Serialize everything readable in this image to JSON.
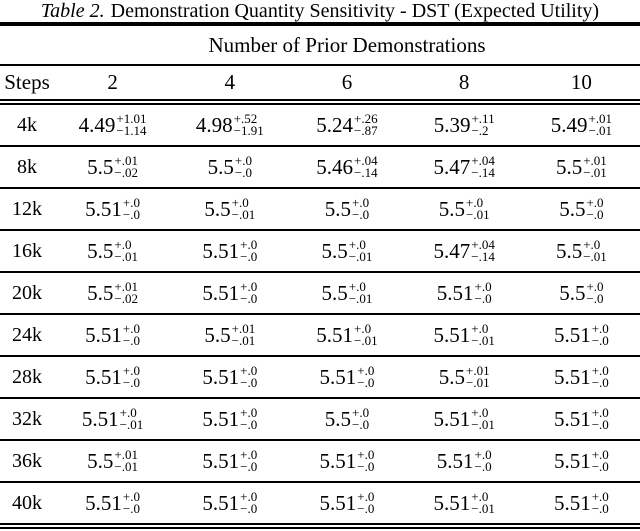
{
  "caption": {
    "label": "Table 2.",
    "text": "Demonstration Quantity Sensitivity - DST (Expected Utility)"
  },
  "table": {
    "span_header": "Number of Prior Demonstrations",
    "columns": [
      "Steps",
      "2",
      "4",
      "6",
      "8",
      "10"
    ],
    "rows": [
      {
        "label": "4k",
        "cells": [
          {
            "value": "4.49",
            "plus": "+1.01",
            "minus": "−1.14"
          },
          {
            "value": "4.98",
            "plus": "+.52",
            "minus": "−1.91"
          },
          {
            "value": "5.24",
            "plus": "+.26",
            "minus": "−.87"
          },
          {
            "value": "5.39",
            "plus": "+.11",
            "minus": "−.2"
          },
          {
            "value": "5.49",
            "plus": "+.01",
            "minus": "−.01"
          }
        ]
      },
      {
        "label": "8k",
        "cells": [
          {
            "value": "5.5",
            "plus": "+.01",
            "minus": "−.02"
          },
          {
            "value": "5.5",
            "plus": "+.0",
            "minus": "−.0"
          },
          {
            "value": "5.46",
            "plus": "+.04",
            "minus": "−.14"
          },
          {
            "value": "5.47",
            "plus": "+.04",
            "minus": "−.14"
          },
          {
            "value": "5.5",
            "plus": "+.01",
            "minus": "−.01"
          }
        ]
      },
      {
        "label": "12k",
        "cells": [
          {
            "value": "5.51",
            "plus": "+.0",
            "minus": "−.0"
          },
          {
            "value": "5.5",
            "plus": "+.0",
            "minus": "−.01"
          },
          {
            "value": "5.5",
            "plus": "+.0",
            "minus": "−.0"
          },
          {
            "value": "5.5",
            "plus": "+.0",
            "minus": "−.01"
          },
          {
            "value": "5.5",
            "plus": "+.0",
            "minus": "−.0"
          }
        ]
      },
      {
        "label": "16k",
        "cells": [
          {
            "value": "5.5",
            "plus": "+.0",
            "minus": "−.01"
          },
          {
            "value": "5.51",
            "plus": "+.0",
            "minus": "−.0"
          },
          {
            "value": "5.5",
            "plus": "+.0",
            "minus": "−.01"
          },
          {
            "value": "5.47",
            "plus": "+.04",
            "minus": "−.14"
          },
          {
            "value": "5.5",
            "plus": "+.0",
            "minus": "−.01"
          }
        ]
      },
      {
        "label": "20k",
        "cells": [
          {
            "value": "5.5",
            "plus": "+.01",
            "minus": "−.02"
          },
          {
            "value": "5.51",
            "plus": "+.0",
            "minus": "−.0"
          },
          {
            "value": "5.5",
            "plus": "+.0",
            "minus": "−.01"
          },
          {
            "value": "5.51",
            "plus": "+.0",
            "minus": "−.0"
          },
          {
            "value": "5.5",
            "plus": "+.0",
            "minus": "−.0"
          }
        ]
      },
      {
        "label": "24k",
        "cells": [
          {
            "value": "5.51",
            "plus": "+.0",
            "minus": "−.0"
          },
          {
            "value": "5.5",
            "plus": "+.01",
            "minus": "−.01"
          },
          {
            "value": "5.51",
            "plus": "+.0",
            "minus": "−.01"
          },
          {
            "value": "5.51",
            "plus": "+.0",
            "minus": "−.01"
          },
          {
            "value": "5.51",
            "plus": "+.0",
            "minus": "−.0"
          }
        ]
      },
      {
        "label": "28k",
        "cells": [
          {
            "value": "5.51",
            "plus": "+.0",
            "minus": "−.0"
          },
          {
            "value": "5.51",
            "plus": "+.0",
            "minus": "−.0"
          },
          {
            "value": "5.51",
            "plus": "+.0",
            "minus": "−.0"
          },
          {
            "value": "5.5",
            "plus": "+.01",
            "minus": "−.01"
          },
          {
            "value": "5.51",
            "plus": "+.0",
            "minus": "−.0"
          }
        ]
      },
      {
        "label": "32k",
        "cells": [
          {
            "value": "5.51",
            "plus": "+.0",
            "minus": "−.01"
          },
          {
            "value": "5.51",
            "plus": "+.0",
            "minus": "−.0"
          },
          {
            "value": "5.5",
            "plus": "+.0",
            "minus": "−.0"
          },
          {
            "value": "5.51",
            "plus": "+.0",
            "minus": "−.01"
          },
          {
            "value": "5.51",
            "plus": "+.0",
            "minus": "−.0"
          }
        ]
      },
      {
        "label": "36k",
        "cells": [
          {
            "value": "5.5",
            "plus": "+.01",
            "minus": "−.01"
          },
          {
            "value": "5.51",
            "plus": "+.0",
            "minus": "−.0"
          },
          {
            "value": "5.51",
            "plus": "+.0",
            "minus": "−.0"
          },
          {
            "value": "5.51",
            "plus": "+.0",
            "minus": "−.0"
          },
          {
            "value": "5.51",
            "plus": "+.0",
            "minus": "−.0"
          }
        ]
      },
      {
        "label": "40k",
        "cells": [
          {
            "value": "5.51",
            "plus": "+.0",
            "minus": "−.0"
          },
          {
            "value": "5.51",
            "plus": "+.0",
            "minus": "−.0"
          },
          {
            "value": "5.51",
            "plus": "+.0",
            "minus": "−.0"
          },
          {
            "value": "5.51",
            "plus": "+.0",
            "minus": "−.01"
          },
          {
            "value": "5.51",
            "plus": "+.0",
            "minus": "−.0"
          }
        ]
      }
    ]
  },
  "colors": {
    "background": "#ffffff",
    "text": "#000000",
    "rule": "#000000"
  }
}
